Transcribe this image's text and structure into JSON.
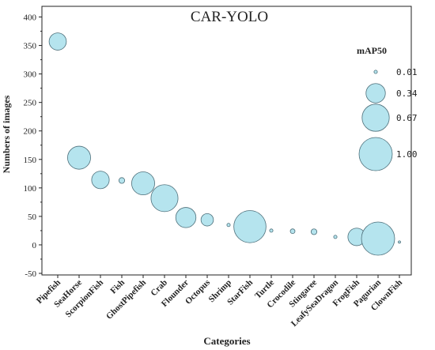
{
  "chart_data": {
    "type": "scatter",
    "title": "CAR-YOLO",
    "xlabel": "Categories",
    "ylabel": "Numbers of images",
    "ylim": [
      -50,
      420
    ],
    "yticks": [
      -50,
      0,
      50,
      100,
      150,
      200,
      250,
      300,
      350,
      400
    ],
    "grid": false,
    "legend_position": "right",
    "bubble_color": "#b5e4ee",
    "bubble_edge": "#4d6f7a",
    "categories": [
      "Pipefish",
      "SeaHorse",
      "ScorpionFish",
      "Fish",
      "GhostPipefish",
      "Crab",
      "Flounder",
      "Octopus",
      "Shrimp",
      "StarFish",
      "Turtle",
      "Crocodile",
      "Stingaree",
      "LeafySeaDragon",
      "FrogFish",
      "Pagurian",
      "ClownFish"
    ],
    "values": [
      357,
      153,
      114,
      113,
      108,
      82,
      48,
      44,
      35,
      32,
      25,
      24,
      23,
      14,
      14,
      11,
      5
    ],
    "size_values": [
      0.27,
      0.48,
      0.28,
      0.03,
      0.48,
      0.66,
      0.37,
      0.14,
      0.01,
      0.94,
      0.01,
      0.02,
      0.03,
      0.01,
      0.28,
      1.0,
      0.005
    ],
    "size_legend": {
      "title": "mAP50",
      "values": [
        0.01,
        0.34,
        0.67,
        1.0
      ],
      "labels": [
        "0.01",
        "0.34",
        "0.67",
        "1.00"
      ]
    }
  }
}
